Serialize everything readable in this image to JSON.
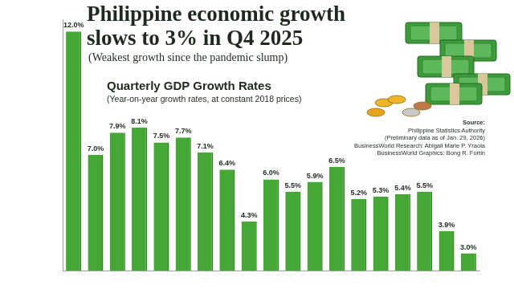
{
  "chart_data": {
    "type": "bar",
    "title": "Philippine economic growth slows to 3% in Q4 2025",
    "subtitle": "(Weakest growth since the pandemic slump)",
    "annotations": {
      "heading": "Quarterly GDP Growth Rates",
      "note": "(Year-on-year growth rates, at constant 2018 prices)",
      "source_label": "Source:",
      "source": [
        "Philippine Statistics Authority",
        "(Preliminary data as of Jan. 29, 2026)",
        "BusinessWorld Research: Abigail Marie P. Yraola",
        "BusinessWorld Graphics: Bong R. Fortin"
      ]
    },
    "categories": [
      null,
      null,
      null,
      null,
      null,
      null,
      null,
      null,
      null,
      null,
      null,
      null,
      null,
      null,
      null,
      null,
      null,
      null,
      null
    ],
    "values": [
      12.0,
      7.0,
      7.9,
      8.1,
      7.5,
      7.7,
      7.1,
      6.4,
      4.3,
      6.0,
      5.5,
      5.9,
      6.5,
      5.2,
      5.3,
      5.4,
      5.5,
      3.9,
      3.0
    ],
    "value_labels": [
      "12.0%",
      "7.0%",
      "7.9%",
      "8.1%",
      "7.5%",
      "7.7%",
      "7.1%",
      "6.4%",
      "4.3%",
      "6.0%",
      "5.5%",
      "5.9%",
      "6.5%",
      "5.2%",
      "5.3%",
      "5.4%",
      "5.5%",
      "3.9%",
      "3.0%"
    ],
    "color": "#45a834",
    "ylim": [
      2.3,
      12.5
    ],
    "grid": false,
    "data_labels": true,
    "tick_labels": false
  }
}
